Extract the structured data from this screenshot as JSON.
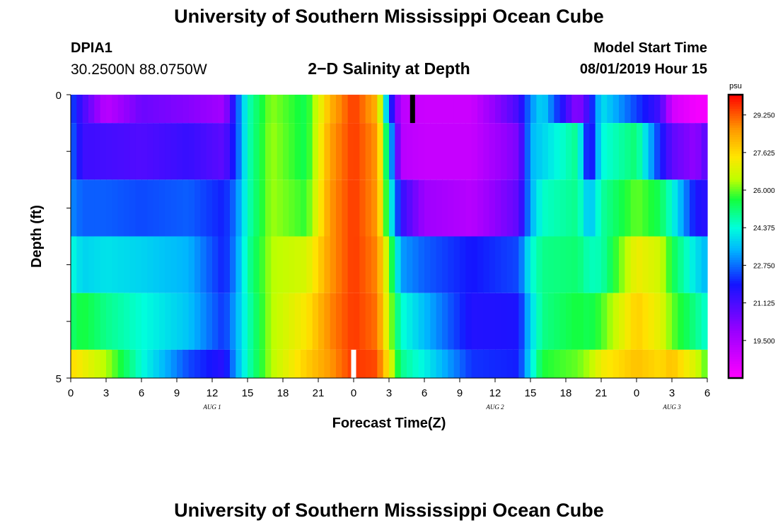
{
  "header": {
    "title": "University of Southern Mississippi Ocean Cube",
    "station": "DPIA1",
    "coordinates": "30.2500N 88.0750W",
    "product": "2−D Salinity at Depth",
    "start_label": "Model Start Time",
    "start_value": "08/01/2019 Hour 15"
  },
  "footer": {
    "title": "University of Southern Mississippi Ocean Cube"
  },
  "chart_data": {
    "type": "heatmap",
    "title": "2-D Salinity at Depth",
    "xlabel": "Forecast Time(Z)",
    "ylabel": "Depth (ft)",
    "x_range_hours": [
      0,
      54
    ],
    "x_ticks": [
      "0",
      "3",
      "6",
      "9",
      "12",
      "15",
      "18",
      "21",
      "0",
      "3",
      "6",
      "9",
      "12",
      "15",
      "18",
      "21",
      "0",
      "3",
      "6"
    ],
    "date_labels": [
      {
        "label": "AUG 1",
        "hour": 12
      },
      {
        "label": "AUG 2",
        "hour": 36
      },
      {
        "label": "AUG 3",
        "hour": 51
      }
    ],
    "y_range": [
      0,
      5
    ],
    "y_tick_labels": [
      {
        "value": 0,
        "label": "0"
      },
      {
        "value": 5,
        "label": "5"
      }
    ],
    "colorbar": {
      "unit": "psu",
      "min": 17.875,
      "max": 30.125,
      "ticks": [
        "29.250",
        "27.625",
        "26.000",
        "24.375",
        "22.750",
        "21.125",
        "19.500"
      ],
      "tick_values": [
        29.25,
        27.625,
        26.0,
        24.375,
        22.75,
        21.125,
        19.5
      ]
    },
    "rows": [
      {
        "depth_from": 0.0,
        "depth_to": 0.5,
        "hours": [
          0,
          1,
          3,
          6,
          10,
          13,
          14,
          15,
          17,
          20,
          22,
          24,
          26,
          27,
          28,
          30,
          34,
          38,
          39,
          40,
          43,
          44,
          45,
          48,
          50,
          51,
          53,
          54
        ],
        "values": [
          22.5,
          21.2,
          19.2,
          20.6,
          20.2,
          19.7,
          22.2,
          24.6,
          26.2,
          25.4,
          28.2,
          29.6,
          28.2,
          22.5,
          19.2,
          18.9,
          18.9,
          21.2,
          23.0,
          23.9,
          20.0,
          21.5,
          24.0,
          22.3,
          21.2,
          18.8,
          18.1,
          18.1
        ]
      },
      {
        "depth_from": 0.5,
        "depth_to": 1.5,
        "hours": [
          0,
          1,
          3,
          6,
          10,
          13,
          14,
          15,
          17,
          20,
          22,
          24,
          26,
          27,
          28,
          30,
          34,
          38,
          39,
          40,
          43,
          44,
          45,
          48,
          50,
          51,
          53,
          54
        ],
        "values": [
          22.8,
          21.3,
          21.2,
          21.0,
          21.4,
          20.8,
          22.2,
          24.6,
          26.3,
          25.4,
          28.5,
          29.6,
          28.6,
          24.2,
          19.3,
          19.0,
          19.0,
          20.4,
          23.4,
          23.8,
          25.0,
          21.2,
          24.3,
          25.2,
          22.0,
          20.8,
          20.0,
          21.0
        ]
      },
      {
        "depth_from": 1.5,
        "depth_to": 2.5,
        "hours": [
          0,
          1,
          3,
          6,
          10,
          13,
          14,
          15,
          17,
          20,
          22,
          24,
          26,
          27,
          28,
          30,
          34,
          38,
          39,
          40,
          43,
          44,
          45,
          48,
          50,
          51,
          53,
          54
        ],
        "values": [
          23.0,
          22.6,
          22.6,
          22.4,
          22.6,
          22.0,
          22.8,
          24.6,
          26.3,
          25.7,
          28.6,
          29.6,
          28.6,
          24.8,
          21.5,
          19.8,
          19.3,
          20.8,
          23.3,
          24.5,
          25.0,
          23.4,
          24.8,
          26.0,
          25.4,
          24.4,
          21.8,
          21.6
        ]
      },
      {
        "depth_from": 2.5,
        "depth_to": 3.5,
        "hours": [
          0,
          1,
          3,
          6,
          10,
          13,
          14,
          15,
          17,
          20,
          22,
          24,
          26,
          27,
          28,
          30,
          34,
          38,
          39,
          40,
          43,
          44,
          45,
          48,
          50,
          51,
          53,
          54
        ],
        "values": [
          24.4,
          23.8,
          24.0,
          23.8,
          23.4,
          22.0,
          23.0,
          24.8,
          26.4,
          26.8,
          28.6,
          29.6,
          28.8,
          26.2,
          23.2,
          22.6,
          21.9,
          22.4,
          24.3,
          25.0,
          25.2,
          24.6,
          24.7,
          27.2,
          26.7,
          25.5,
          24.0,
          23.4
        ]
      },
      {
        "depth_from": 3.5,
        "depth_to": 4.5,
        "hours": [
          0,
          1,
          3,
          6,
          10,
          13,
          14,
          15,
          17,
          20,
          22,
          24,
          26,
          27,
          28,
          30,
          34,
          38,
          39,
          40,
          43,
          44,
          45,
          48,
          50,
          51,
          53,
          54
        ],
        "values": [
          25.2,
          25.6,
          25.0,
          24.4,
          23.6,
          22.2,
          23.3,
          24.6,
          26.4,
          27.4,
          28.8,
          29.6,
          29.0,
          26.5,
          24.5,
          23.5,
          21.7,
          21.8,
          23.8,
          25.0,
          25.6,
          25.4,
          25.8,
          27.8,
          27.0,
          26.0,
          25.0,
          24.4
        ]
      },
      {
        "depth_from": 4.5,
        "depth_to": 5.0,
        "hours": [
          0,
          1,
          3,
          6,
          10,
          13,
          14,
          15,
          17,
          20,
          22,
          24,
          26,
          27,
          28,
          30,
          34,
          38,
          39,
          40,
          43,
          44,
          45,
          48,
          50,
          51,
          53,
          54
        ],
        "values": [
          27.6,
          27.2,
          26.4,
          24.4,
          22.4,
          21.6,
          23.2,
          24.6,
          26.4,
          27.8,
          28.6,
          29.6,
          29.4,
          27.2,
          25.0,
          24.2,
          22.2,
          22.0,
          24.0,
          25.6,
          26.0,
          26.4,
          27.2,
          28.0,
          27.6,
          28.0,
          26.8,
          25.8
        ]
      }
    ],
    "markers": [
      {
        "hour": 29,
        "depth_from": 0.0,
        "depth_to": 0.5,
        "color": "#000000"
      },
      {
        "hour": 24,
        "depth_from": 4.5,
        "depth_to": 5.0,
        "color": "#ffffff"
      }
    ]
  }
}
